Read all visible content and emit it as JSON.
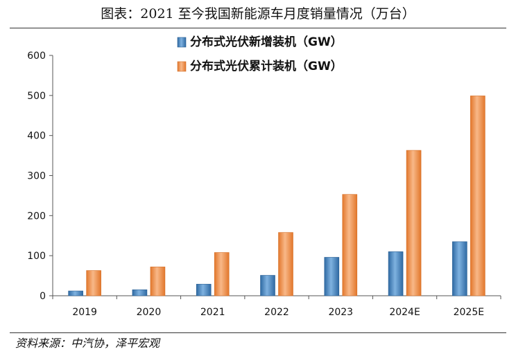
{
  "title": "图表：2021 至今我国新能源车月度销量情况（万台）",
  "source": "资料来源：中汽协，泽平宏观",
  "colors": {
    "new": "#4a86bf",
    "cumulative": "#f0924a"
  },
  "chart_data": {
    "type": "bar",
    "title": "图表：2021 至今我国新能源车月度销量情况（万台）",
    "categories": [
      "2019",
      "2020",
      "2021",
      "2022",
      "2023",
      "2024E",
      "2025E"
    ],
    "series": [
      {
        "name": "分布式光伏新增装机（GW）",
        "values": [
          12,
          15,
          29,
          51,
          96,
          110,
          135
        ]
      },
      {
        "name": "分布式光伏累计装机（GW）",
        "values": [
          63,
          72,
          108,
          158,
          253,
          363,
          499
        ]
      }
    ],
    "yticks": [
      0,
      100,
      200,
      300,
      400,
      500,
      600
    ],
    "ylim": [
      0,
      600
    ],
    "xlabel": "",
    "ylabel": "",
    "grid": false,
    "legend": "top"
  }
}
